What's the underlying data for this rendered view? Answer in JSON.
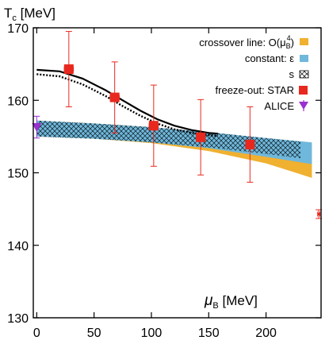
{
  "chart_data": {
    "type": "scatter",
    "title": "",
    "ylabel": "T_c [MeV]",
    "ylabel_main": "T",
    "ylabel_sub": "c",
    "ylabel_unit": " [MeV]",
    "xlabel": "μ_B [MeV]",
    "xlabel_main": "μ",
    "xlabel_sub": "B",
    "xlabel_unit": " [MeV]",
    "xlim": [
      -3,
      248
    ],
    "ylim": [
      130,
      170
    ],
    "x_ticks": [
      0,
      50,
      100,
      150,
      200
    ],
    "y_ticks": [
      130,
      140,
      150,
      160,
      170
    ],
    "x_tick_labels": [
      "0",
      "50",
      "100",
      "150",
      "200"
    ],
    "y_tick_labels": [
      "130",
      "140",
      "150",
      "160",
      "170"
    ],
    "grid": false,
    "legend_placement": "top-right",
    "legend": [
      {
        "label": "crossover line: O(μ",
        "label_sub": "B",
        "label_sup": "4",
        "label_end": ")",
        "marker": "band",
        "color": "#f0b030"
      },
      {
        "label": "constant: ε",
        "marker": "band",
        "color": "#6fb8dc"
      },
      {
        "label": "s",
        "marker": "hatch",
        "color": "#000000"
      },
      {
        "label": "freeze-out: STAR",
        "marker": "square",
        "color": "#e8281e"
      },
      {
        "label": "ALICE",
        "marker": "triangle-down",
        "color": "#9b30d0"
      }
    ],
    "series": [
      {
        "name": "crossover line: O(μ_B^4)",
        "kind": "band",
        "color": "#f0b030",
        "x": [
          0,
          50,
          100,
          150,
          200,
          240
        ],
        "y_upper": [
          157.2,
          156.8,
          156.3,
          155.6,
          154.7,
          154.0
        ],
        "y_lower": [
          155.0,
          154.7,
          154.1,
          153.0,
          151.3,
          149.3
        ]
      },
      {
        "name": "constant: ε",
        "kind": "band",
        "color": "#6fb8dc",
        "x": [
          0,
          50,
          100,
          150,
          200,
          240
        ],
        "y_upper": [
          157.2,
          156.8,
          156.3,
          155.6,
          154.8,
          154.2
        ],
        "y_lower": [
          155.0,
          154.7,
          154.2,
          153.4,
          152.2,
          151.2
        ]
      },
      {
        "name": "s",
        "kind": "hatched-band",
        "color": "#000000",
        "x": [
          0,
          50,
          100,
          150,
          200,
          230
        ],
        "y_upper": [
          157.2,
          156.8,
          156.3,
          155.6,
          154.8,
          154.3
        ],
        "y_lower": [
          155.0,
          154.7,
          154.2,
          153.5,
          152.6,
          152.0
        ]
      },
      {
        "name": "curve-solid",
        "kind": "line",
        "style": "solid",
        "color": "#000000",
        "x": [
          0,
          20,
          40,
          60,
          75,
          90,
          105,
          120,
          135,
          150,
          158
        ],
        "y": [
          164.2,
          164.0,
          163.0,
          161.4,
          160.0,
          158.6,
          157.4,
          156.5,
          155.9,
          155.5,
          155.4
        ]
      },
      {
        "name": "curve-dotted",
        "kind": "line",
        "style": "dotted",
        "color": "#000000",
        "x": [
          0,
          20,
          40,
          60,
          75,
          90,
          105,
          120,
          135,
          150,
          158
        ],
        "y": [
          163.6,
          163.3,
          162.2,
          160.6,
          159.2,
          157.9,
          156.8,
          156.0,
          155.5,
          155.2,
          155.1
        ]
      },
      {
        "name": "freeze-out: STAR",
        "kind": "points",
        "marker": "square",
        "color": "#e8281e",
        "x": [
          28,
          68,
          102,
          143,
          186
        ],
        "y": [
          164.3,
          160.4,
          156.5,
          154.9,
          153.9
        ],
        "y_err": [
          5.2,
          4.9,
          5.6,
          5.2,
          5.2
        ],
        "x_err": [
          4,
          4,
          4,
          0,
          0
        ]
      },
      {
        "name": "ALICE",
        "kind": "points",
        "marker": "triangle-down",
        "color": "#9b30d0",
        "x": [
          0
        ],
        "y": [
          156.3
        ],
        "y_err": [
          1.5
        ],
        "x_err": [
          0
        ]
      },
      {
        "name": "edge-point",
        "kind": "points",
        "marker": "square",
        "color": "#e8281e",
        "x": [
          246
        ],
        "y": [
          144.3
        ],
        "y_err": [
          0.6
        ],
        "x_err": [
          1
        ]
      }
    ]
  }
}
